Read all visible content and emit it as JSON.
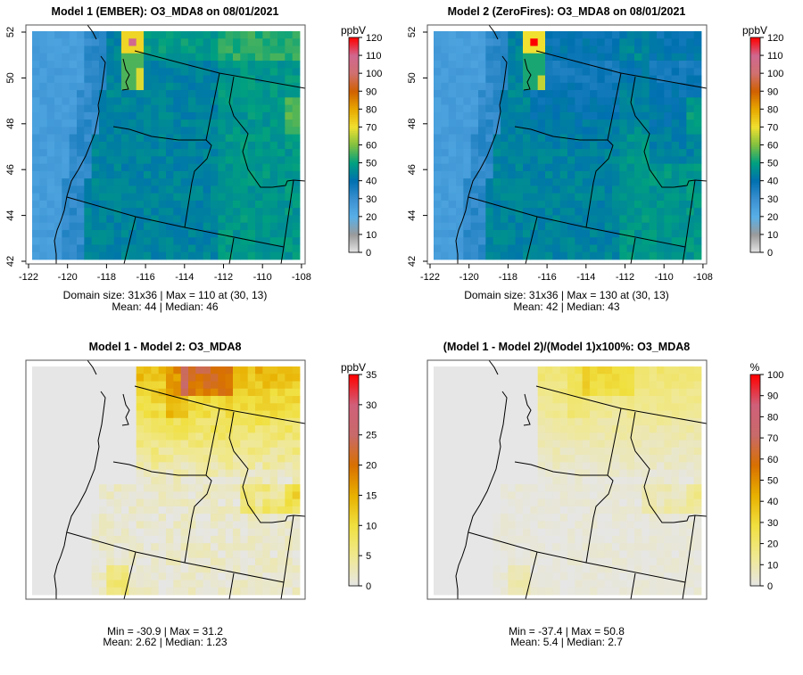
{
  "panels": [
    {
      "id": "model1",
      "title": "Model 1 (EMBER): O3_MDA8 on 08/01/2021",
      "unit": "ppbV",
      "scale": "conc",
      "cbar_max": 120,
      "cbar_ticks": [
        "0",
        "10",
        "20",
        "30",
        "40",
        "50",
        "60",
        "70",
        "80",
        "90",
        "100",
        "110",
        "120"
      ],
      "stats": [
        "Domain size: 31x36 | Max = 110 at (30, 13)",
        "Mean: 44 |  Median: 46"
      ],
      "axes": true
    },
    {
      "id": "model2",
      "title": "Model 2 (ZeroFires): O3_MDA8 on 08/01/2021",
      "unit": "ppbV",
      "scale": "conc",
      "cbar_max": 120,
      "cbar_ticks": [
        "0",
        "10",
        "20",
        "30",
        "40",
        "50",
        "60",
        "70",
        "80",
        "90",
        "100",
        "110",
        "120"
      ],
      "stats": [
        "Domain size: 31x36 | Max = 130 at (30, 13)",
        "Mean: 42 |  Median: 43"
      ],
      "axes": true
    },
    {
      "id": "diff",
      "title": "Model 1 - Model 2: O3_MDA8",
      "unit": "ppbV",
      "scale": "diff",
      "cbar_max": 35,
      "cbar_ticks": [
        "0",
        "5",
        "10",
        "15",
        "20",
        "25",
        "30",
        "35"
      ],
      "stats": [
        "Min = -30.9 | Max = 31.2",
        "Mean: 2.62 |  Median: 1.23"
      ],
      "axes": false
    },
    {
      "id": "pctdiff",
      "title": "(Model 1 - Model 2)/(Model 1)x100%: O3_MDA8",
      "unit": "%",
      "scale": "pct",
      "cbar_max": 100,
      "cbar_ticks": [
        "0",
        "10",
        "20",
        "30",
        "40",
        "50",
        "60",
        "70",
        "80",
        "90",
        "100"
      ],
      "stats": [
        "Min = -37.4 | Max = 50.8",
        "Mean: 5.4 |  Median: 2.7"
      ],
      "axes": false
    }
  ],
  "x_ticks": [
    "-122",
    "-120",
    "-118",
    "-116",
    "-114",
    "-112",
    "-110",
    "-108"
  ],
  "y_ticks": [
    "42",
    "44",
    "46",
    "48",
    "50",
    "52"
  ],
  "colors": {
    "conc": [
      "#e6e6e6",
      "#9a9a9a",
      "#58b0e8",
      "#3a90d0",
      "#0070b0",
      "#00a080",
      "#80c040",
      "#f0e030",
      "#e8a800",
      "#d06000",
      "#d07070",
      "#d06890",
      "#ff0000"
    ],
    "diff": [
      "#e6e6e6",
      "#f0e890",
      "#f0e040",
      "#e8b000",
      "#d87000",
      "#c86a6a",
      "#d0607a",
      "#ff0000"
    ],
    "border": "#000000"
  },
  "chart_data": {
    "type": "heatmap",
    "grid": {
      "rows": 31,
      "cols": 36
    },
    "xlim": [
      -122,
      -108
    ],
    "ylim": [
      42,
      52
    ],
    "series": [
      {
        "name": "Model 1 (EMBER)",
        "variable": "O3_MDA8",
        "date": "08/01/2021",
        "unit": "ppbV",
        "max": 110,
        "max_at": [
          30,
          13
        ],
        "mean": 44,
        "median": 46
      },
      {
        "name": "Model 2 (ZeroFires)",
        "variable": "O3_MDA8",
        "date": "08/01/2021",
        "unit": "ppbV",
        "max": 130,
        "max_at": [
          30,
          13
        ],
        "mean": 42,
        "median": 43
      },
      {
        "name": "Model 1 - Model 2",
        "unit": "ppbV",
        "min": -30.9,
        "max": 31.2,
        "mean": 2.62,
        "median": 1.23
      },
      {
        "name": "(Model 1 - Model 2)/(Model 1)x100%",
        "unit": "%",
        "min": -37.4,
        "max": 50.8,
        "mean": 5.4,
        "median": 2.7
      }
    ]
  }
}
